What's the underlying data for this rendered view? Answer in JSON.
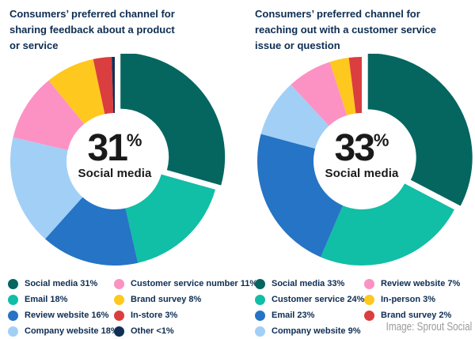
{
  "credit": "Image: Sprout Social",
  "chart_data": [
    {
      "type": "pie",
      "subtype": "donut",
      "title": "Consumers’ preferred channel for\nsharing feedback about a product\nor service",
      "center": {
        "value": "31",
        "suffix": "%",
        "label": "Social media"
      },
      "legend_position": "bottom",
      "slices": [
        {
          "label": "Social media",
          "value": 31,
          "value_label": "31%",
          "color": "#056660",
          "exploded": true
        },
        {
          "label": "Email",
          "value": 18,
          "value_label": "18%",
          "color": "#11bea6"
        },
        {
          "label": "Review website",
          "value": 16,
          "value_label": "16%",
          "color": "#2574c5"
        },
        {
          "label": "Company website",
          "value": 18,
          "value_label": "18%",
          "color": "#a2cff6"
        },
        {
          "label": "Customer service number",
          "value": 11,
          "value_label": "11%",
          "color": "#fc92c3"
        },
        {
          "label": "Brand survey",
          "value": 8,
          "value_label": "8%",
          "color": "#ffc81e"
        },
        {
          "label": "In-store",
          "value": 3,
          "value_label": "3%",
          "color": "#db3e3e"
        },
        {
          "label": "Other",
          "value": 0.5,
          "value_label": "<1%",
          "color": "#102f55"
        }
      ],
      "legend_columns": [
        [
          0,
          1,
          2,
          3
        ],
        [
          4,
          5,
          6,
          7
        ]
      ]
    },
    {
      "type": "pie",
      "subtype": "donut",
      "title": "Consumers’ preferred channel for\nreaching out with a customer service\nissue or question",
      "center": {
        "value": "33",
        "suffix": "%",
        "label": "Social media"
      },
      "legend_position": "bottom",
      "slices": [
        {
          "label": "Social media",
          "value": 33,
          "value_label": "33%",
          "color": "#056660",
          "exploded": true
        },
        {
          "label": "Customer service",
          "value": 24,
          "value_label": "24%",
          "color": "#11bea6"
        },
        {
          "label": "Email",
          "value": 23,
          "value_label": "23%",
          "color": "#2574c5"
        },
        {
          "label": "Company website",
          "value": 9,
          "value_label": "9%",
          "color": "#a2cff6"
        },
        {
          "label": "Review website",
          "value": 7,
          "value_label": "7%",
          "color": "#fc92c3"
        },
        {
          "label": "In-person",
          "value": 3,
          "value_label": "3%",
          "color": "#ffc81e"
        },
        {
          "label": "Brand survey",
          "value": 2,
          "value_label": "2%",
          "color": "#db3e3e"
        }
      ],
      "legend_columns": [
        [
          0,
          1,
          2,
          3
        ],
        [
          4,
          5,
          6
        ]
      ]
    }
  ]
}
